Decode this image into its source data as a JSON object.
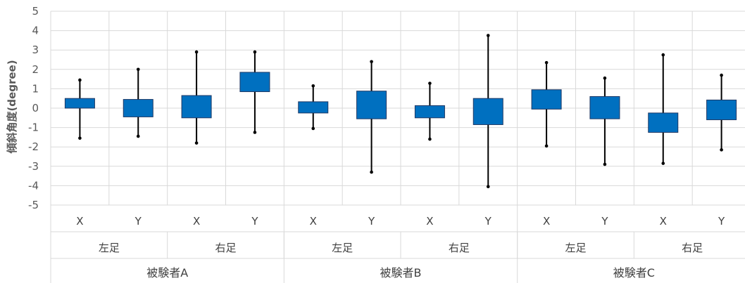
{
  "chart_data": {
    "type": "boxplot",
    "ylabel": "傾斜角度(degree)",
    "ylim": [
      -5,
      5
    ],
    "yticks": [
      5,
      4,
      3,
      2,
      1,
      0,
      -1,
      -2,
      -3,
      -4,
      -5
    ],
    "grid": true,
    "legend": "none",
    "colors": {
      "box": "#0070C0",
      "box_border": "#1F3864",
      "whisker": "#000000",
      "grid": "#D9D9D9"
    },
    "groups": [
      {
        "label": "被験者A",
        "subgroups": [
          {
            "label": "左足"
          },
          {
            "label": "右足"
          }
        ]
      },
      {
        "label": "被験者B",
        "subgroups": [
          {
            "label": "左足"
          },
          {
            "label": "右足"
          }
        ]
      },
      {
        "label": "被験者C",
        "subgroups": [
          {
            "label": "左足"
          },
          {
            "label": "右足"
          }
        ]
      }
    ],
    "boxes": [
      {
        "label": "X",
        "subject": "被験者A",
        "foot": "左足",
        "min": -1.55,
        "q1": 0.0,
        "q3": 0.5,
        "max": 1.45
      },
      {
        "label": "Y",
        "subject": "被験者A",
        "foot": "左足",
        "min": -1.45,
        "q1": -0.45,
        "q3": 0.45,
        "max": 2.0
      },
      {
        "label": "X",
        "subject": "被験者A",
        "foot": "右足",
        "min": -1.8,
        "q1": -0.5,
        "q3": 0.65,
        "max": 2.9
      },
      {
        "label": "Y",
        "subject": "被験者A",
        "foot": "右足",
        "min": -1.25,
        "q1": 0.85,
        "q3": 1.85,
        "max": 2.9
      },
      {
        "label": "X",
        "subject": "被験者B",
        "foot": "左足",
        "min": -1.05,
        "q1": -0.25,
        "q3": 0.33,
        "max": 1.15
      },
      {
        "label": "Y",
        "subject": "被験者B",
        "foot": "左足",
        "min": -3.3,
        "q1": -0.55,
        "q3": 0.88,
        "max": 2.4
      },
      {
        "label": "X",
        "subject": "被験者B",
        "foot": "右足",
        "min": -1.6,
        "q1": -0.5,
        "q3": 0.13,
        "max": 1.28
      },
      {
        "label": "Y",
        "subject": "被験者B",
        "foot": "右足",
        "min": -4.05,
        "q1": -0.85,
        "q3": 0.5,
        "max": 3.75
      },
      {
        "label": "X",
        "subject": "被験者C",
        "foot": "左足",
        "min": -1.95,
        "q1": -0.05,
        "q3": 0.95,
        "max": 2.35
      },
      {
        "label": "Y",
        "subject": "被験者C",
        "foot": "左足",
        "min": -2.9,
        "q1": -0.55,
        "q3": 0.6,
        "max": 1.55
      },
      {
        "label": "X",
        "subject": "被験者C",
        "foot": "右足",
        "min": -2.85,
        "q1": -1.25,
        "q3": -0.25,
        "max": 2.75
      },
      {
        "label": "Y",
        "subject": "被験者C",
        "foot": "右足",
        "min": -2.15,
        "q1": -0.6,
        "q3": 0.42,
        "max": 1.7
      }
    ]
  }
}
